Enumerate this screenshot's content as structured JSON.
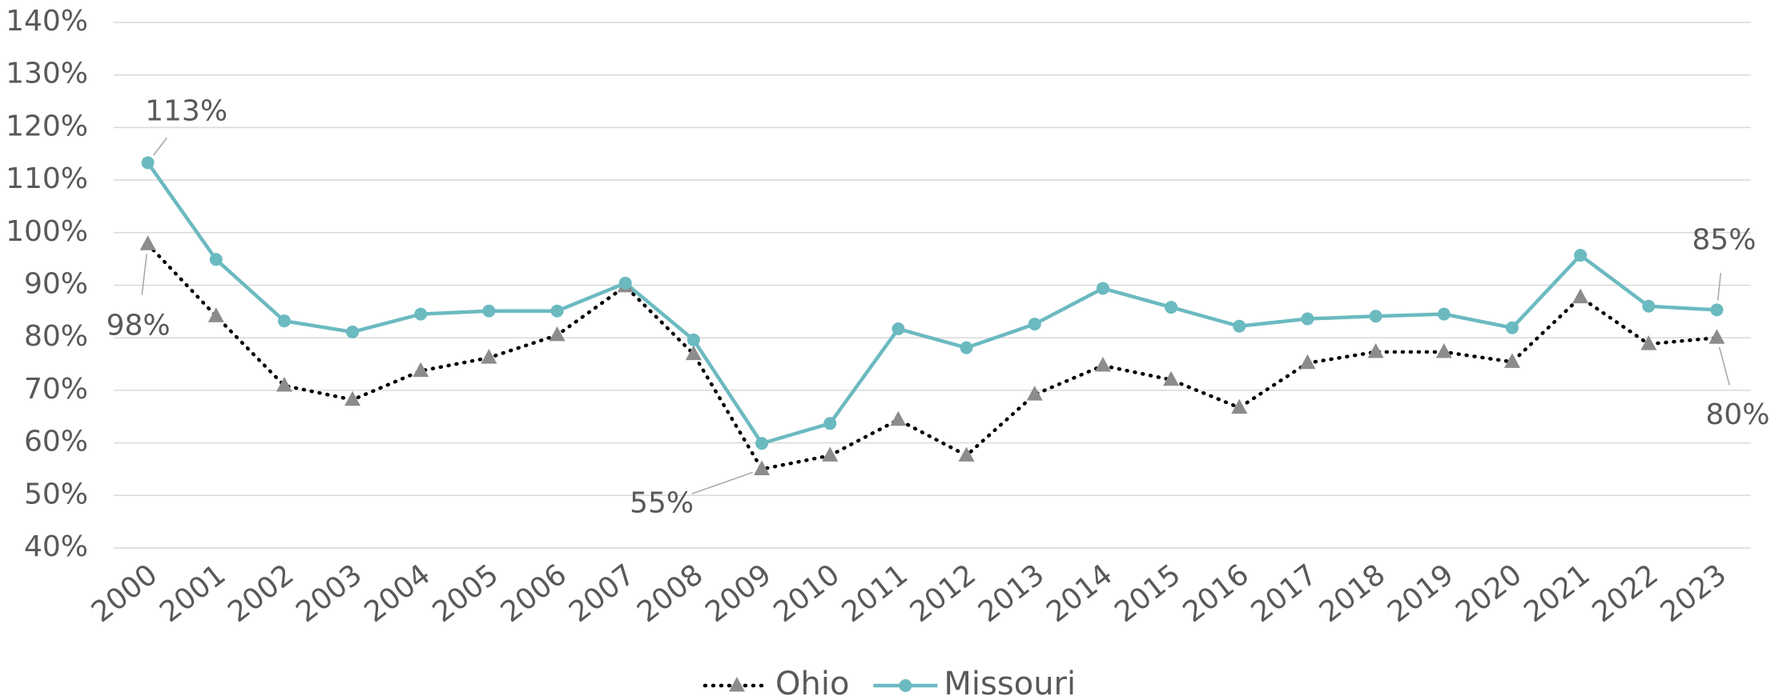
{
  "chart_data": {
    "type": "line",
    "categories": [
      "2000",
      "2001",
      "2002",
      "2003",
      "2004",
      "2005",
      "2006",
      "2007",
      "2008",
      "2009",
      "2010",
      "2011",
      "2012",
      "2013",
      "2014",
      "2015",
      "2016",
      "2017",
      "2018",
      "2019",
      "2020",
      "2021",
      "2022",
      "2023"
    ],
    "series": [
      {
        "name": "Ohio",
        "color": "#000000",
        "marker_color": "#8c8c8c",
        "marker": "triangle",
        "dash": "dotted",
        "values": [
          97.8,
          84.1,
          70.9,
          68.2,
          73.7,
          76.2,
          80.5,
          89.8,
          76.9,
          55,
          57.6,
          64.4,
          57.6,
          69.2,
          74.7,
          72,
          66.7,
          75.2,
          77.3,
          77.3,
          75.4,
          87.7,
          78.8,
          80
        ],
        "value_labels": [
          "98%",
          null,
          null,
          null,
          null,
          null,
          null,
          null,
          null,
          "55%",
          null,
          null,
          null,
          null,
          null,
          null,
          null,
          null,
          null,
          null,
          null,
          null,
          null,
          "80%"
        ]
      },
      {
        "name": "Missouri",
        "color": "#6bbac0",
        "marker_color": "#6bbac0",
        "marker": "circle",
        "dash": "solid",
        "values": [
          113.3,
          94.9,
          83.2,
          81.1,
          84.5,
          85.1,
          85.1,
          90.4,
          79.6,
          59.9,
          63.7,
          81.7,
          78.1,
          82.6,
          89.4,
          85.8,
          82.2,
          83.6,
          84.1,
          84.5,
          81.9,
          95.7,
          86,
          85.3
        ],
        "value_labels": [
          "113%",
          null,
          null,
          null,
          null,
          null,
          null,
          null,
          null,
          null,
          null,
          null,
          null,
          null,
          null,
          null,
          null,
          null,
          null,
          null,
          null,
          null,
          null,
          "85%"
        ]
      }
    ],
    "ylim": [
      40,
      140
    ],
    "yticks": [
      {
        "value": 40,
        "label": "40%"
      },
      {
        "value": 50,
        "label": "50%"
      },
      {
        "value": 60,
        "label": "60%"
      },
      {
        "value": 70,
        "label": "70%"
      },
      {
        "value": 80,
        "label": "80%"
      },
      {
        "value": 90,
        "label": "90%"
      },
      {
        "value": 100,
        "label": "100%"
      },
      {
        "value": 110,
        "label": "110%"
      },
      {
        "value": 120,
        "label": "120%"
      },
      {
        "value": 130,
        "label": "130%"
      },
      {
        "value": 140,
        "label": "140%"
      }
    ],
    "grid": true,
    "legend": "bottom"
  }
}
